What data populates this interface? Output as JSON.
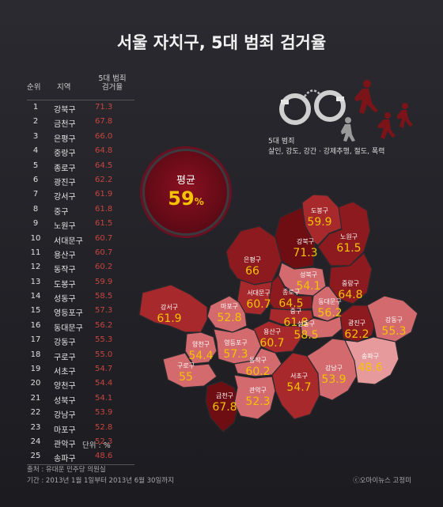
{
  "title": "서울 자치구, 5대 범죄 검거율",
  "table": {
    "header_rank": "순위",
    "header_region": "지역",
    "header_rate_line1": "5대 범죄",
    "header_rate_line2": "검거율",
    "rows": [
      {
        "rank": "1",
        "region": "강북구",
        "rate": "71.3"
      },
      {
        "rank": "2",
        "region": "금천구",
        "rate": "67.8"
      },
      {
        "rank": "3",
        "region": "은평구",
        "rate": "66.0"
      },
      {
        "rank": "4",
        "region": "중랑구",
        "rate": "64.8"
      },
      {
        "rank": "5",
        "region": "종로구",
        "rate": "64.5"
      },
      {
        "rank": "6",
        "region": "광진구",
        "rate": "62.2"
      },
      {
        "rank": "7",
        "region": "강서구",
        "rate": "61.9"
      },
      {
        "rank": "8",
        "region": "중구",
        "rate": "61.8"
      },
      {
        "rank": "9",
        "region": "노원구",
        "rate": "61.5"
      },
      {
        "rank": "10",
        "region": "서대문구",
        "rate": "60.7"
      },
      {
        "rank": "11",
        "region": "용산구",
        "rate": "60.7"
      },
      {
        "rank": "12",
        "region": "동작구",
        "rate": "60.2"
      },
      {
        "rank": "13",
        "region": "도봉구",
        "rate": "59.9"
      },
      {
        "rank": "14",
        "region": "성동구",
        "rate": "58.5"
      },
      {
        "rank": "15",
        "region": "영등포구",
        "rate": "57.3"
      },
      {
        "rank": "16",
        "region": "동대문구",
        "rate": "56.2"
      },
      {
        "rank": "17",
        "region": "강동구",
        "rate": "55.3"
      },
      {
        "rank": "18",
        "region": "구로구",
        "rate": "55.0"
      },
      {
        "rank": "19",
        "region": "서초구",
        "rate": "54.7"
      },
      {
        "rank": "20",
        "region": "양천구",
        "rate": "54.4"
      },
      {
        "rank": "21",
        "region": "성북구",
        "rate": "54.1"
      },
      {
        "rank": "22",
        "region": "강남구",
        "rate": "53.9"
      },
      {
        "rank": "23",
        "region": "마포구",
        "rate": "52.8"
      },
      {
        "rank": "24",
        "region": "관악구",
        "rate": "52.3"
      },
      {
        "rank": "25",
        "region": "송파구",
        "rate": "48.6"
      }
    ]
  },
  "unit": "단위 : %",
  "source_line1": "출처 : 유대운 민주당 의원실",
  "source_line2": "기간 : 2013년 1월 1일부터 2013년 6월 30일까지",
  "credit": "ⓒ오마이뉴스 고정미",
  "average": {
    "label": "평균",
    "value": "59",
    "unit": "%"
  },
  "legend": {
    "line1": "5대 범죄",
    "line2": "살인, 강도, 강간 · 강제추행, 절도, 폭력"
  },
  "colors": {
    "rate_text": "#c9453f",
    "value_text": "#f5c400",
    "dark": "#6e0e12",
    "mid": "#a8292c",
    "light": "#d36a6e",
    "pale": "#e79a9c"
  },
  "icons": [
    "handcuffs-icon",
    "running-figures-icon"
  ],
  "districts": [
    {
      "name": "도봉구",
      "value": "59.9"
    },
    {
      "name": "강북구",
      "value": "71.3"
    },
    {
      "name": "노원구",
      "value": "61.5"
    },
    {
      "name": "은평구",
      "value": "66"
    },
    {
      "name": "성북구",
      "value": "54.1"
    },
    {
      "name": "중랑구",
      "value": "64.8"
    },
    {
      "name": "서대문구",
      "value": "60.7"
    },
    {
      "name": "종로구",
      "value": "64.5"
    },
    {
      "name": "동대문구",
      "value": "56.2"
    },
    {
      "name": "마포구",
      "value": "52.8"
    },
    {
      "name": "중구",
      "value": "61.8"
    },
    {
      "name": "강서구",
      "value": "61.9"
    },
    {
      "name": "성동구",
      "value": "58.5"
    },
    {
      "name": "광진구",
      "value": "62.2"
    },
    {
      "name": "강동구",
      "value": "55.3"
    },
    {
      "name": "용산구",
      "value": "60.7"
    },
    {
      "name": "양천구",
      "value": "54.4"
    },
    {
      "name": "영등포구",
      "value": "57.3"
    },
    {
      "name": "구로구",
      "value": "55"
    },
    {
      "name": "동작구",
      "value": "60.2"
    },
    {
      "name": "서초구",
      "value": "54.7"
    },
    {
      "name": "강남구",
      "value": "53.9"
    },
    {
      "name": "송파구",
      "value": "48.6"
    },
    {
      "name": "금천구",
      "value": "67.8"
    },
    {
      "name": "관악구",
      "value": "52.3"
    }
  ]
}
